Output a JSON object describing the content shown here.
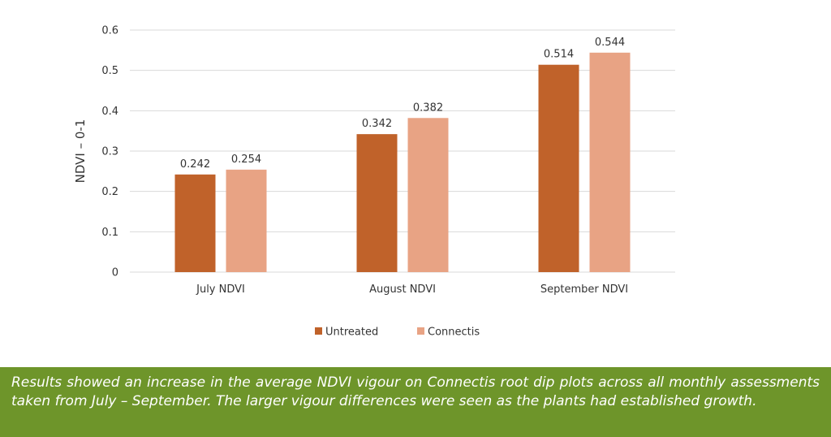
{
  "chart_data": {
    "type": "bar",
    "categories": [
      "July NDVI",
      "August NDVI",
      "September NDVI"
    ],
    "series": [
      {
        "name": "Untreated",
        "values": [
          0.242,
          0.342,
          0.514
        ],
        "color": "#c0622a"
      },
      {
        "name": "Connectis",
        "values": [
          0.254,
          0.382,
          0.544
        ],
        "color": "#e8a384"
      }
    ],
    "data_labels": [
      [
        "0.242",
        "0.342",
        "0.514"
      ],
      [
        "0.254",
        "0.382",
        "0.544"
      ]
    ],
    "ylabel": "NDVI – 0-1",
    "xlabel": "",
    "ylim": [
      0,
      0.6
    ],
    "yticks": [
      0,
      0.1,
      0.2,
      0.3,
      0.4,
      0.5,
      0.6
    ],
    "ytick_labels": [
      "0",
      "0.1",
      "0.2",
      "0.3",
      "0.4",
      "0.5",
      "0.6"
    ],
    "grid": true,
    "gridline_color": "#d9d9d9",
    "legend_position": "bottom"
  },
  "caption": {
    "text": "Results showed an increase in the average NDVI vigour on Connectis root dip plots across all monthly assessments taken from July – September. The larger vigour differences were seen as the plants had established growth.",
    "background_color": "#6e952a"
  }
}
